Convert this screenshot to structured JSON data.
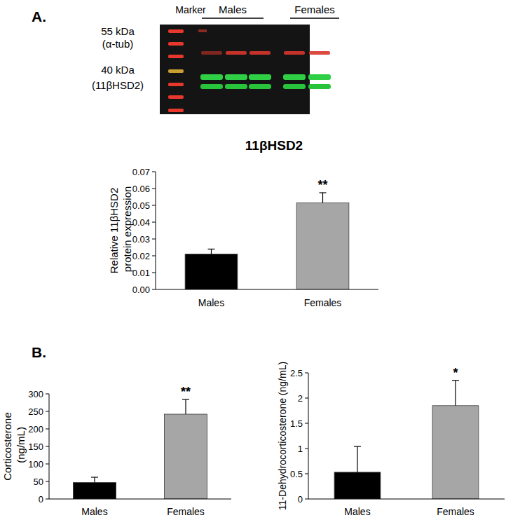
{
  "figure": {
    "panel_labels": [
      "A.",
      "B."
    ],
    "blot": {
      "marker_label": "Marker",
      "groups": [
        "Males",
        "Females"
      ],
      "bands": [
        {
          "size": "55 kDa",
          "protein": "(α-tub)"
        },
        {
          "size": "40 kDa",
          "protein": "(11βHSD2)"
        }
      ]
    }
  },
  "chart_data": [
    {
      "type": "bar",
      "title": "11βHSD2",
      "y_label": "Relative 11βHSD2 protein expression",
      "categories": [
        "Males",
        "Females"
      ],
      "values": [
        0.021,
        0.0515
      ],
      "errors": [
        0.003,
        0.006
      ],
      "significance": [
        null,
        "**"
      ],
      "colors": [
        "#000000",
        "#a6a6a6"
      ],
      "ylim": [
        0,
        0.07
      ],
      "yticks": [
        {
          "value": 0,
          "label": "0.00"
        },
        {
          "value": 0.01,
          "label": "0.01"
        },
        {
          "value": 0.02,
          "label": "0.02"
        },
        {
          "value": 0.03,
          "label": "0.03"
        },
        {
          "value": 0.04,
          "label": "0.04"
        },
        {
          "value": 0.05,
          "label": "0.05"
        },
        {
          "value": 0.06,
          "label": "0.06"
        },
        {
          "value": 0.07,
          "label": "0.07"
        }
      ],
      "grid": false
    },
    {
      "type": "bar",
      "y_label": "Corticosterone (ng/mL)",
      "categories": [
        "Males",
        "Females"
      ],
      "values": [
        47,
        242
      ],
      "errors": [
        15,
        42
      ],
      "significance": [
        null,
        "**"
      ],
      "colors": [
        "#000000",
        "#a6a6a6"
      ],
      "ylim": [
        0,
        300
      ],
      "yticks": [
        0,
        50,
        100,
        150,
        200,
        250,
        300
      ],
      "grid": false
    },
    {
      "type": "bar",
      "y_label": "11-Dehydrocorticosterone (ng/mL)",
      "categories": [
        "Males",
        "Females"
      ],
      "values": [
        0.53,
        1.85
      ],
      "errors": [
        0.51,
        0.5
      ],
      "significance": [
        null,
        "*"
      ],
      "colors": [
        "#000000",
        "#a6a6a6"
      ],
      "ylim": [
        0,
        2.5
      ],
      "yticks": [
        0,
        0.5,
        1,
        1.5,
        2,
        2.5
      ],
      "grid": false
    }
  ]
}
